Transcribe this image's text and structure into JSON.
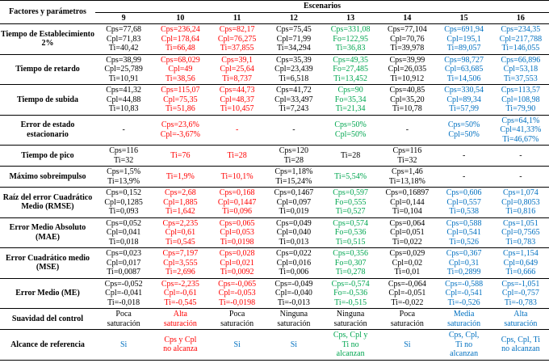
{
  "colors": {
    "black": "#000000",
    "red": "#FF0000",
    "green": "#00A650",
    "blue": "#0070C0"
  },
  "table": {
    "corner_label": "Factores y parámetros",
    "group_label": "Escenarios",
    "scenario_numbers": [
      "9",
      "10",
      "11",
      "12",
      "13",
      "14",
      "15",
      "16"
    ],
    "rows": [
      {
        "label": "Tiempo de Establecimiento 2%",
        "cells": [
          {
            "color": "black",
            "lines": [
              "Cps=77,68",
              "Cpl=71,83",
              "Ti=40,42"
            ]
          },
          {
            "color": "red",
            "lines": [
              "Cps=236,24",
              "Cpl=178,64",
              "Ti=66,48"
            ]
          },
          {
            "color": "red",
            "lines": [
              "Cps=82,17",
              "Cpl=76,275",
              "Ti=37,855"
            ]
          },
          {
            "color": "black",
            "lines": [
              "Cps=75,45",
              "Cpl=71,99",
              "Ti=34,294"
            ]
          },
          {
            "color": "green",
            "lines": [
              "Cps=331,08",
              "Fo=122,95",
              "Ti=36,83"
            ]
          },
          {
            "color": "black",
            "lines": [
              "Cps=77,104",
              "Cpl=70,76",
              "Ti=39,978"
            ]
          },
          {
            "color": "blue",
            "lines": [
              "Cps=691,94",
              "Cpl=195,1",
              "Ti=89,057"
            ]
          },
          {
            "color": "blue",
            "lines": [
              "Cps=234,35",
              "Cpl=217,788",
              "Ti=146,055"
            ]
          }
        ]
      },
      {
        "label": "Tiempo de retardo",
        "cells": [
          {
            "color": "black",
            "lines": [
              "Cps=38,99",
              "Cpl=25,789",
              "Ti=10,91"
            ]
          },
          {
            "color": "red",
            "lines": [
              "Cps=68,029",
              "Cpl=49",
              "Ti=38,56"
            ]
          },
          {
            "color": "red",
            "lines": [
              "Cps=39,1",
              "Cpl=25,64",
              "Ti=8,737"
            ]
          },
          {
            "color": "black",
            "lines": [
              "Cps=35,39",
              "Cpl=23,439",
              "Ti=6,518"
            ]
          },
          {
            "color": "green",
            "lines": [
              "Cps=49,35",
              "Fo=27,485",
              "Ti=13,452"
            ]
          },
          {
            "color": "black",
            "lines": [
              "Cps=39,99",
              "Cpl=26,035",
              "Ti=10,912"
            ]
          },
          {
            "color": "blue",
            "lines": [
              "Cps=98,727",
              "Cpl=63,685",
              "Ti=14,506"
            ]
          },
          {
            "color": "blue",
            "lines": [
              "Cps=66,896",
              "Cpl=53,18",
              "Ti=37,553"
            ]
          }
        ]
      },
      {
        "label": "Tiempo de subida",
        "cells": [
          {
            "color": "black",
            "lines": [
              "Cps=41,32",
              "Cpl=44,88",
              "Ti=10,83"
            ]
          },
          {
            "color": "red",
            "lines": [
              "Cps=115,07",
              "Cpl=75,35",
              "Ti=51,86"
            ]
          },
          {
            "color": "red",
            "lines": [
              "Cps=44,73",
              "Cpl=48,37",
              "Ti=10,457"
            ]
          },
          {
            "color": "black",
            "lines": [
              "Cps=41,72",
              "Cpl=33,497",
              "Ti=7,243"
            ]
          },
          {
            "color": "green",
            "lines": [
              "Cps=90",
              "Fo=35,34",
              "Ti=21,34"
            ]
          },
          {
            "color": "black",
            "lines": [
              "Cps=40,85",
              "Cpl=35,20",
              "Ti=10,78"
            ]
          },
          {
            "color": "blue",
            "lines": [
              "Cps=330,54",
              "Cpl=89,34",
              "Ti=57,99"
            ]
          },
          {
            "color": "blue",
            "lines": [
              "Cps=113,57",
              "Cpl=108,98",
              "Ti=79,90"
            ]
          }
        ]
      },
      {
        "label": "Error de estado estacionario",
        "cells": [
          {
            "color": "black",
            "lines": [
              "-"
            ]
          },
          {
            "color": "red",
            "lines": [
              "Cps=23,6%",
              "Cpl=-3,67%"
            ]
          },
          {
            "color": "red",
            "lines": [
              "-"
            ]
          },
          {
            "color": "black",
            "lines": [
              "-"
            ]
          },
          {
            "color": "green",
            "lines": [
              "Cps=50%",
              "Cpl=50%"
            ]
          },
          {
            "color": "black",
            "lines": [
              "-"
            ]
          },
          {
            "color": "blue",
            "lines": [
              "Cps=50%",
              "Cpl=50%"
            ]
          },
          {
            "color": "blue",
            "lines": [
              "Cps=64,1%",
              "Cpl=41,33%",
              "Ti=46,67%"
            ]
          }
        ]
      },
      {
        "label": "Tiempo de pico",
        "cells": [
          {
            "color": "black",
            "lines": [
              "Cps=116",
              "Ti=32"
            ]
          },
          {
            "color": "red",
            "lines": [
              "Ti=76"
            ]
          },
          {
            "color": "red",
            "lines": [
              "Ti=28"
            ]
          },
          {
            "color": "black",
            "lines": [
              "Cps=120",
              "Ti=28"
            ]
          },
          {
            "color": "black",
            "lines": [
              "Ti=28"
            ]
          },
          {
            "color": "black",
            "lines": [
              "Cps=116",
              "Ti=32"
            ]
          },
          {
            "color": "black",
            "lines": [
              "-"
            ]
          },
          {
            "color": "black",
            "lines": [
              "-"
            ]
          }
        ]
      },
      {
        "label": "Máximo sobreimpulso",
        "cells": [
          {
            "color": "black",
            "lines": [
              "Cps=1,5%",
              "Ti=13,9%"
            ]
          },
          {
            "color": "red",
            "lines": [
              "Ti=1,9%"
            ]
          },
          {
            "color": "red",
            "lines": [
              "Ti=10,1%"
            ]
          },
          {
            "color": "black",
            "lines": [
              "Cps=1,18%",
              "Ti=15,24%"
            ]
          },
          {
            "color": "green",
            "lines": [
              "Ti=5,54%"
            ]
          },
          {
            "color": "black",
            "lines": [
              "Cps=1,46",
              "Ti=13,18%"
            ]
          },
          {
            "color": "black",
            "lines": [
              "-"
            ]
          },
          {
            "color": "black",
            "lines": [
              "-"
            ]
          }
        ]
      },
      {
        "label": "Raíz del error Cuadrático Medio (RMSE)",
        "cells": [
          {
            "color": "black",
            "lines": [
              "Cps=0,152",
              "Cpl=0,1285",
              "Ti=0,093"
            ]
          },
          {
            "color": "red",
            "lines": [
              "Cps=2,68",
              "Cpl=1,885",
              "Ti=1,642"
            ]
          },
          {
            "color": "red",
            "lines": [
              "Cps=0,168",
              "Cpl=0,1447",
              "Ti=0,096"
            ]
          },
          {
            "color": "black",
            "lines": [
              "Cps=0,1467",
              "Cpl=0,097",
              "Ti=0,019"
            ]
          },
          {
            "color": "green",
            "lines": [
              "Cps=0,597",
              "Fo=0,555",
              "Ti=0,527"
            ]
          },
          {
            "color": "black",
            "lines": [
              "Cps=0,16897",
              "Cpl=0,144",
              "Ti=0,104"
            ]
          },
          {
            "color": "blue",
            "lines": [
              "Cps=0,606",
              "Cpl=0,557",
              "Ti=0,538"
            ]
          },
          {
            "color": "blue",
            "lines": [
              "Cps=1,074",
              "Cpl=0,8053",
              "Ti=0,816"
            ]
          }
        ]
      },
      {
        "label": "Error Medio Absoluto (MAE)",
        "cells": [
          {
            "color": "black",
            "lines": [
              "Cps=0,052",
              "Cpl=0,041",
              "Ti=0,018"
            ]
          },
          {
            "color": "red",
            "lines": [
              "Cps=2,235",
              "Cpl=0,61",
              "Ti=0,545"
            ]
          },
          {
            "color": "red",
            "lines": [
              "Cps=0,065",
              "Cpl=0,053",
              "Ti=0,0198"
            ]
          },
          {
            "color": "black",
            "lines": [
              "Cps=0,049",
              "Cpl=0,040",
              "Ti=0,013"
            ]
          },
          {
            "color": "green",
            "lines": [
              "Cps=0,574",
              "Fo=0,536",
              "Ti=0,515"
            ]
          },
          {
            "color": "black",
            "lines": [
              "Cps=0,064",
              "Cpl=0,051",
              "Ti=0,022"
            ]
          },
          {
            "color": "blue",
            "lines": [
              "Cps=0,588",
              "Cpl=0,541",
              "Ti=0,526"
            ]
          },
          {
            "color": "blue",
            "lines": [
              "Cps=1,051",
              "Cpl=0,7565",
              "Ti=0,783"
            ]
          }
        ]
      },
      {
        "label": "Error Cuadrático medio (MSE)",
        "cells": [
          {
            "color": "black",
            "lines": [
              "Cps=0,023",
              "Cpl=0,017",
              "Ti=0,0087"
            ]
          },
          {
            "color": "red",
            "lines": [
              "Cps=7,197",
              "Cpl=3,555",
              "Ti=2,696"
            ]
          },
          {
            "color": "red",
            "lines": [
              "Cps=0,028",
              "Cpl=0,021",
              "Ti=0,0092"
            ]
          },
          {
            "color": "black",
            "lines": [
              "Cps=0,022",
              "Cpl=0,016",
              "Ti=0,006"
            ]
          },
          {
            "color": "green",
            "lines": [
              "Cps=0,356",
              "Fo=0,307",
              "Ti=0,278"
            ]
          },
          {
            "color": "black",
            "lines": [
              "Cps=0,029",
              "Cpl=0,02",
              "Ti=0,01"
            ]
          },
          {
            "color": "blue",
            "lines": [
              "Cps=0,367",
              "Cpl=0,31",
              "Ti=0,2899"
            ]
          },
          {
            "color": "blue",
            "lines": [
              "Cps=1,154",
              "Cpl=0,649",
              "Ti=0,666"
            ]
          }
        ]
      },
      {
        "label": "Error Medio (ME)",
        "cells": [
          {
            "color": "black",
            "lines": [
              "Cps=-0,052",
              "Cpl=-0,041",
              "Ti=-0,018"
            ]
          },
          {
            "color": "red",
            "lines": [
              "Cps=-2,235",
              "Cpl=-0,61",
              "Ti=-0,545"
            ]
          },
          {
            "color": "red",
            "lines": [
              "Cps=-0,065",
              "Cpl=-0,053",
              "Ti=-0,0198"
            ]
          },
          {
            "color": "black",
            "lines": [
              "Cps=-0,049",
              "Cpl=-0,040",
              "Ti=-0,013"
            ]
          },
          {
            "color": "green",
            "lines": [
              "Cps=-0,574",
              "Fo=-0,536",
              "Ti=-0,515"
            ]
          },
          {
            "color": "black",
            "lines": [
              "Cps=-0,064",
              "Cpl=-0,051",
              "Ti=-0,022"
            ]
          },
          {
            "color": "blue",
            "lines": [
              "Cps=-0,588",
              "Cpl=-0,541",
              "Ti=-0,526"
            ]
          },
          {
            "color": "blue",
            "lines": [
              "Cps=-1,051",
              "Cpl=-0,757",
              "Ti=-0,783"
            ]
          }
        ]
      },
      {
        "label": "Suavidad del control",
        "cells": [
          {
            "color": "black",
            "lines": [
              "Poca",
              "saturación"
            ]
          },
          {
            "color": "red",
            "lines": [
              "Alta",
              "saturación"
            ]
          },
          {
            "color": "black",
            "lines": [
              "Poca",
              "saturación"
            ]
          },
          {
            "color": "black",
            "lines": [
              "Ninguna",
              "saturación"
            ]
          },
          {
            "color": "black",
            "lines": [
              "Ninguna",
              "saturación"
            ]
          },
          {
            "color": "black",
            "lines": [
              "Poca",
              "saturación"
            ]
          },
          {
            "color": "blue",
            "lines": [
              "Media",
              "saturación"
            ]
          },
          {
            "color": "blue",
            "lines": [
              "Alta",
              "saturación"
            ]
          }
        ]
      },
      {
        "label": "Alcance de referencia",
        "cells": [
          {
            "color": "blue",
            "lines": [
              "Si"
            ]
          },
          {
            "color": "red",
            "lines": [
              "Cps y Cpl",
              "no alcanza"
            ]
          },
          {
            "color": "blue",
            "lines": [
              "Si"
            ]
          },
          {
            "color": "blue",
            "lines": [
              "Si"
            ]
          },
          {
            "color": "green",
            "lines": [
              "Cps, Cpl y",
              "Ti no",
              "alcanzan"
            ]
          },
          {
            "color": "blue",
            "lines": [
              "Si"
            ]
          },
          {
            "color": "blue",
            "lines": [
              "Cps, Cpl,",
              "Ti no",
              "alcanzan"
            ]
          },
          {
            "color": "blue",
            "lines": [
              "Cps, Cpl, Ti",
              "no alcanzan"
            ]
          }
        ]
      }
    ]
  }
}
